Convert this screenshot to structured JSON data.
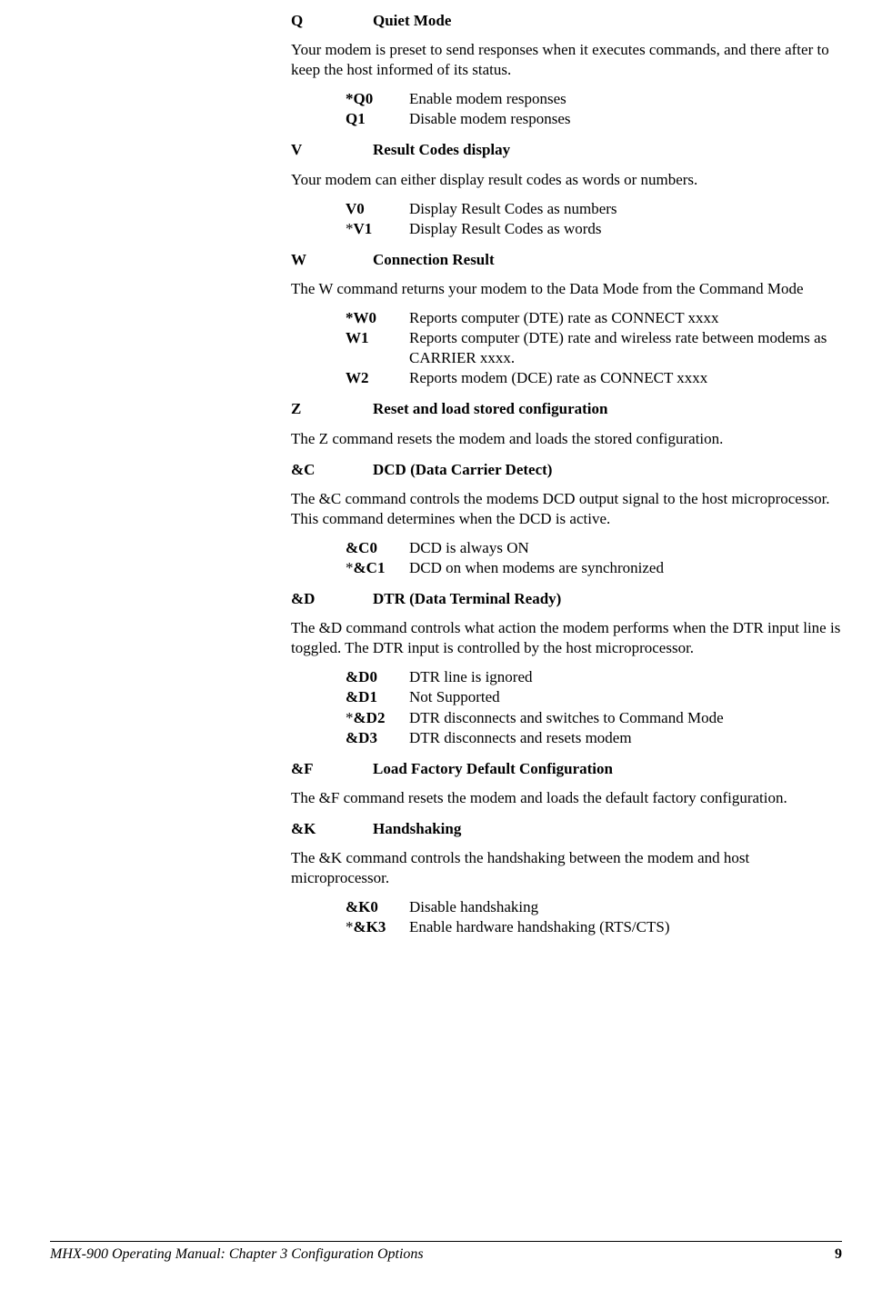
{
  "sections": {
    "Q": {
      "key": "Q",
      "title": "Quiet Mode",
      "desc": "Your modem is preset to send responses when it executes commands, and there after to keep the host informed of its status.",
      "options": [
        {
          "k": "*Q0",
          "star": "prefix-bold",
          "v": "Enable modem responses"
        },
        {
          "k": "Q1",
          "v": "Disable modem responses"
        }
      ]
    },
    "V": {
      "key": "V",
      "title": "Result Codes display",
      "desc": "Your modem can either display result codes as words or numbers.",
      "options": [
        {
          "k": "V0",
          "v": "Display Result Codes as numbers"
        },
        {
          "k": "V1",
          "star": "prefix-normal",
          "v": "Display Result Codes as words"
        }
      ]
    },
    "W": {
      "key": "W",
      "title": "Connection Result",
      "desc": "The W command returns your modem to the Data Mode from the Command Mode",
      "options": [
        {
          "k": "*W0",
          "star": "prefix-bold",
          "v": "Reports computer (DTE) rate as CONNECT xxxx"
        },
        {
          "k": "W1",
          "v": "Reports computer (DTE) rate and wireless rate between modems as CARRIER xxxx."
        },
        {
          "k": "W2",
          "v": "Reports modem (DCE) rate as CONNECT xxxx"
        }
      ]
    },
    "Z": {
      "key": "Z",
      "title": "Reset and load stored configuration",
      "desc": "The Z command resets the modem and loads the stored configuration."
    },
    "AC": {
      "key": "&C",
      "title": "DCD (Data Carrier Detect)",
      "desc": "The &C command controls the modems DCD output signal to the host microprocessor.  This command determines when the DCD is active.",
      "options": [
        {
          "k": "&C0",
          "v": "DCD is always ON"
        },
        {
          "k": "&C1",
          "star": "prefix-normal",
          "v": "DCD on when modems are synchronized"
        }
      ]
    },
    "AD": {
      "key": "&D",
      "title": "DTR (Data Terminal Ready)",
      "desc": "The &D command controls what action the modem performs when the DTR input line is toggled.  The DTR input is controlled by the host microprocessor.",
      "options": [
        {
          "k": "&D0",
          "v": "DTR line is ignored"
        },
        {
          "k": "&D1",
          "v": "Not Supported"
        },
        {
          "k": "&D2",
          "star": "prefix-normal",
          "v": "DTR disconnects and switches to Command Mode"
        },
        {
          "k": "&D3",
          "v": "DTR disconnects and resets modem"
        }
      ]
    },
    "AF": {
      "key": "&F",
      "title": "Load Factory Default Configuration",
      "desc": "The &F command resets the modem and loads the default factory configuration."
    },
    "AK": {
      "key": "&K",
      "title": "Handshaking",
      "desc": "The &K command controls the handshaking between the modem and host microprocessor.",
      "options": [
        {
          "k": "&K0",
          "v": "Disable handshaking"
        },
        {
          "k": "&K3",
          "star": "prefix-normal",
          "v": "Enable hardware handshaking (RTS/CTS)"
        }
      ]
    }
  },
  "footer": {
    "text": "MHX-900 Operating Manual: Chapter 3 Configuration Options",
    "page": "9"
  }
}
